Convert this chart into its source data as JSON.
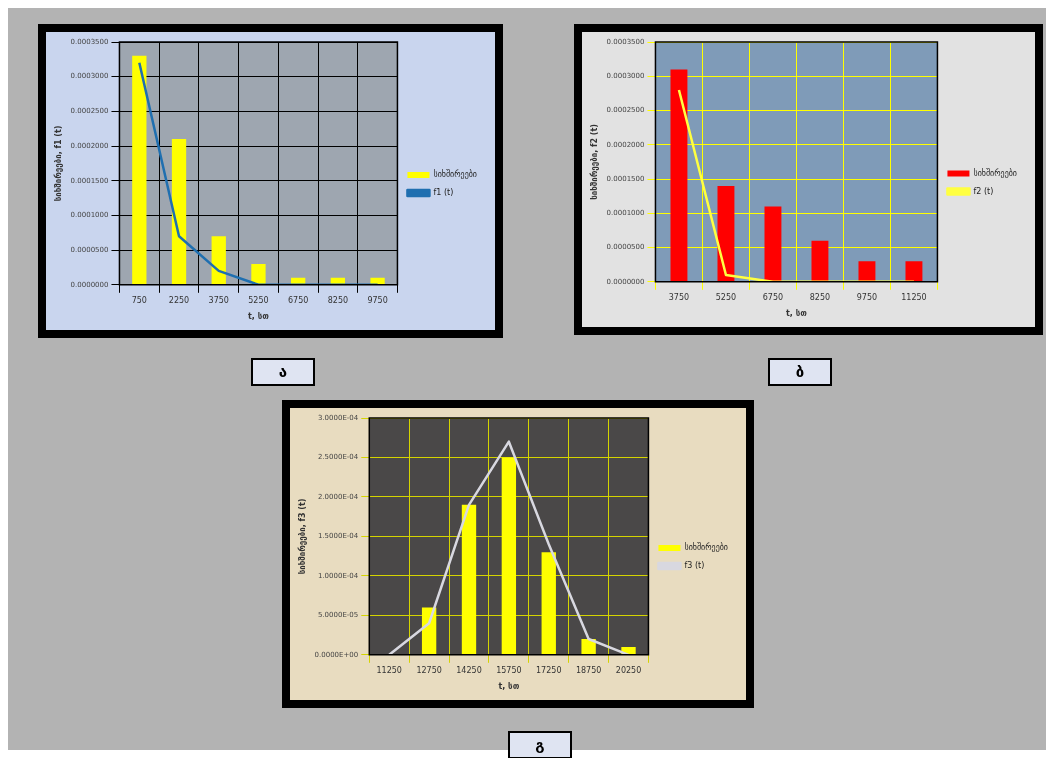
{
  "chart_data": [
    {
      "type": "bar",
      "xlabel": "t, სთ",
      "ylabel": "სიხშირეები, f1 (t)",
      "categories": [
        "750",
        "2250",
        "3750",
        "5250",
        "6750",
        "8250",
        "9750"
      ],
      "series": [
        {
          "name": "სიხშირეები",
          "color": "#ffff00",
          "values": [
            0.00033,
            0.00021,
            7e-05,
            3e-05,
            1e-05,
            1e-05,
            1e-05
          ]
        },
        {
          "name": "f1 (t)",
          "type": "line",
          "color": "#1f6fb0",
          "values": [
            0.00032,
            7e-05,
            2e-05,
            0,
            0,
            0,
            0
          ]
        }
      ],
      "ylim": [
        0,
        0.00035
      ],
      "yticks": [
        {
          "value": 0,
          "label": "0.0000000"
        },
        {
          "value": 5e-05,
          "label": "0.0000500"
        },
        {
          "value": 0.0001,
          "label": "0.0001000"
        },
        {
          "value": 0.00015,
          "label": "0.0001500"
        },
        {
          "value": 0.0002,
          "label": "0.0002000"
        },
        {
          "value": 0.00025,
          "label": "0.0002500"
        },
        {
          "value": 0.0003,
          "label": "0.0003000"
        },
        {
          "value": 0.00035,
          "label": "0.0003500"
        }
      ],
      "grid": true,
      "legend": "right",
      "marker": "none",
      "annotations": [
        "ა"
      ]
    },
    {
      "type": "bar",
      "xlabel": "t, სთ",
      "ylabel": "სიხშირეები, f2 (t)",
      "categories": [
        "3750",
        "5250",
        "6750",
        "8250",
        "9750",
        "11250"
      ],
      "series": [
        {
          "name": "სიხშირეები",
          "color": "#ff0000",
          "values": [
            0.00031,
            0.00014,
            0.00011,
            6e-05,
            3e-05,
            3e-05
          ]
        },
        {
          "name": "f2 (t)",
          "type": "line",
          "color": "#ffff40",
          "values": [
            0.00028,
            1e-05,
            0,
            0,
            0,
            0
          ]
        }
      ],
      "ylim": [
        0,
        0.00035
      ],
      "yticks": [
        {
          "value": 0,
          "label": "0.0000000"
        },
        {
          "value": 5e-05,
          "label": "0.0000500"
        },
        {
          "value": 0.0001,
          "label": "0.0001000"
        },
        {
          "value": 0.00015,
          "label": "0.0001500"
        },
        {
          "value": 0.0002,
          "label": "0.0002000"
        },
        {
          "value": 0.00025,
          "label": "0.0002500"
        },
        {
          "value": 0.0003,
          "label": "0.0003000"
        },
        {
          "value": 0.00035,
          "label": "0.0003500"
        }
      ],
      "grid": true,
      "legend": "right",
      "marker": "none",
      "annotations": [
        "ბ"
      ]
    },
    {
      "type": "bar",
      "xlabel": "t, სთ",
      "ylabel": "სიხშირეები, f3 (t)",
      "categories": [
        "11250",
        "12750",
        "14250",
        "15750",
        "17250",
        "18750",
        "20250"
      ],
      "series": [
        {
          "name": "სიხშირეები",
          "color": "#ffff00",
          "values": [
            0,
            6e-05,
            0.00019,
            0.00025,
            0.00013,
            2e-05,
            1e-05
          ]
        },
        {
          "name": "f3 (t)",
          "type": "line",
          "color": "#d8d8e0",
          "values": [
            0,
            4e-05,
            0.00019,
            0.00027,
            0.00014,
            2e-05,
            0
          ]
        }
      ],
      "ylim": [
        0,
        0.0003
      ],
      "yticks": [
        {
          "value": 0,
          "label": "0.0000E+00"
        },
        {
          "value": 5e-05,
          "label": "5.0000E-05"
        },
        {
          "value": 0.0001,
          "label": "1.0000E-04"
        },
        {
          "value": 0.00015,
          "label": "1.5000E-04"
        },
        {
          "value": 0.0002,
          "label": "2.0000E-04"
        },
        {
          "value": 0.00025,
          "label": "2.5000E-04"
        },
        {
          "value": 0.0003,
          "label": "3.0000E-04"
        }
      ],
      "grid": true,
      "legend": "right",
      "marker": "none",
      "annotations": [
        "გ"
      ]
    }
  ]
}
